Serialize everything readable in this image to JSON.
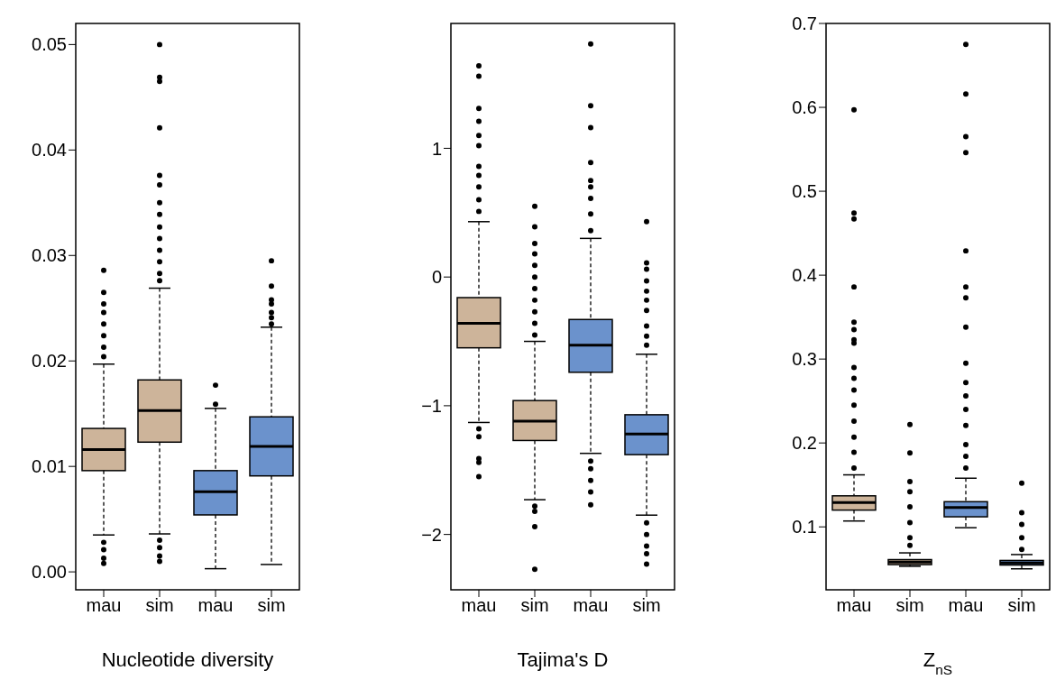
{
  "chart_data": [
    {
      "type": "box",
      "xlabel": "Nucleotide diversity",
      "categories": [
        "mau",
        "sim",
        "mau",
        "sim"
      ],
      "colors": [
        "#cdb49a",
        "#cdb49a",
        "#6b92cc",
        "#6b92cc"
      ],
      "ylim": [
        -0.0017,
        0.052
      ],
      "yticks": [
        {
          "value": 0,
          "label": "0.00"
        },
        {
          "value": 0.01,
          "label": "0.01"
        },
        {
          "value": 0.02,
          "label": "0.02"
        },
        {
          "value": 0.03,
          "label": "0.03"
        },
        {
          "value": 0.04,
          "label": "0.04"
        },
        {
          "value": 0.05,
          "label": "0.05"
        }
      ],
      "grid": false,
      "legend": false,
      "boxes": [
        {
          "low": 0.0035,
          "q1": 0.0096,
          "median": 0.0116,
          "q3": 0.0136,
          "high": 0.0197,
          "outliers": [
            0.0286,
            0.0265,
            0.0254,
            0.0246,
            0.0235,
            0.0224,
            0.0213,
            0.0204,
            0.0028,
            0.0021,
            0.0013,
            0.0008
          ]
        },
        {
          "low": 0.0036,
          "q1": 0.0123,
          "median": 0.0153,
          "q3": 0.0182,
          "high": 0.0269,
          "outliers": [
            0.05,
            0.0469,
            0.0465,
            0.0421,
            0.0376,
            0.0367,
            0.035,
            0.0339,
            0.0327,
            0.0316,
            0.0305,
            0.0294,
            0.0283,
            0.0276,
            0.003,
            0.0023,
            0.0015,
            0.001
          ]
        },
        {
          "low": 0.0003,
          "q1": 0.0054,
          "median": 0.0076,
          "q3": 0.0096,
          "high": 0.0155,
          "outliers": [
            0.0177,
            0.0159
          ]
        },
        {
          "low": 0.0007,
          "q1": 0.0091,
          "median": 0.0119,
          "q3": 0.0147,
          "high": 0.0232,
          "outliers": [
            0.0295,
            0.0271,
            0.0258,
            0.0254,
            0.0246,
            0.0241,
            0.0235
          ]
        }
      ]
    },
    {
      "type": "box",
      "xlabel": "Tajima's D",
      "categories": [
        "mau",
        "sim",
        "mau",
        "sim"
      ],
      "colors": [
        "#cdb49a",
        "#cdb49a",
        "#6b92cc",
        "#6b92cc"
      ],
      "ylim": [
        -2.43,
        1.97
      ],
      "yticks": [
        {
          "value": -2,
          "label": "−2"
        },
        {
          "value": -1,
          "label": "−1"
        },
        0,
        1
      ],
      "grid": false,
      "legend": false,
      "boxes": [
        {
          "low": -1.13,
          "q1": -0.55,
          "median": -0.36,
          "q3": -0.16,
          "high": 0.43,
          "outliers": [
            1.64,
            1.56,
            1.31,
            1.21,
            1.1,
            1.02,
            0.86,
            0.79,
            0.7,
            0.6,
            0.51,
            -1.18,
            -1.24,
            -1.41,
            -1.44,
            -1.55
          ]
        },
        {
          "low": -1.73,
          "q1": -1.27,
          "median": -1.12,
          "q3": -0.96,
          "high": -0.5,
          "outliers": [
            0.55,
            0.39,
            0.26,
            0.18,
            0.09,
            0,
            -0.09,
            -0.18,
            -0.27,
            -0.36,
            -0.45,
            -1.78,
            -1.82,
            -1.94,
            -2.27
          ]
        },
        {
          "low": -1.37,
          "q1": -0.74,
          "median": -0.53,
          "q3": -0.33,
          "high": 0.3,
          "outliers": [
            1.81,
            1.33,
            1.16,
            0.89,
            0.75,
            0.7,
            0.61,
            0.49,
            0.36,
            -1.43,
            -1.49,
            -1.58,
            -1.67,
            -1.77
          ]
        },
        {
          "low": -1.85,
          "q1": -1.38,
          "median": -1.22,
          "q3": -1.07,
          "high": -0.6,
          "outliers": [
            0.43,
            0.11,
            0.06,
            -0.03,
            -0.11,
            -0.18,
            -0.26,
            -0.38,
            -0.46,
            -0.53,
            -1.91,
            -2.0,
            -2.09,
            -2.15,
            -2.23
          ]
        }
      ]
    },
    {
      "type": "box",
      "xlabel": "Z$_{nS}$",
      "categories": [
        "mau",
        "sim",
        "mau",
        "sim"
      ],
      "colors": [
        "#cdb49a",
        "#cdb49a",
        "#6b92cc",
        "#6b92cc"
      ],
      "ylim": [
        0.025,
        0.7
      ],
      "yticks": [
        0.1,
        0.2,
        0.3,
        0.4,
        0.5,
        0.6,
        0.7
      ],
      "grid": false,
      "legend": false,
      "boxes": [
        {
          "low": 0.107,
          "q1": 0.12,
          "median": 0.129,
          "q3": 0.137,
          "high": 0.162,
          "outliers": [
            0.597,
            0.474,
            0.467,
            0.386,
            0.344,
            0.335,
            0.323,
            0.319,
            0.29,
            0.277,
            0.263,
            0.245,
            0.226,
            0.207,
            0.189,
            0.17
          ]
        },
        {
          "low": 0.053,
          "q1": 0.055,
          "median": 0.058,
          "q3": 0.061,
          "high": 0.069,
          "outliers": [
            0.222,
            0.188,
            0.154,
            0.142,
            0.124,
            0.105,
            0.087,
            0.078
          ]
        },
        {
          "low": 0.099,
          "q1": 0.112,
          "median": 0.123,
          "q3": 0.13,
          "high": 0.158,
          "outliers": [
            0.675,
            0.616,
            0.565,
            0.546,
            0.429,
            0.386,
            0.373,
            0.338,
            0.295,
            0.272,
            0.256,
            0.24,
            0.221,
            0.198,
            0.184,
            0.17
          ]
        },
        {
          "low": 0.05,
          "q1": 0.0545,
          "median": 0.057,
          "q3": 0.06,
          "high": 0.067,
          "outliers": [
            0.152,
            0.117,
            0.103,
            0.087,
            0.073
          ]
        }
      ]
    }
  ]
}
